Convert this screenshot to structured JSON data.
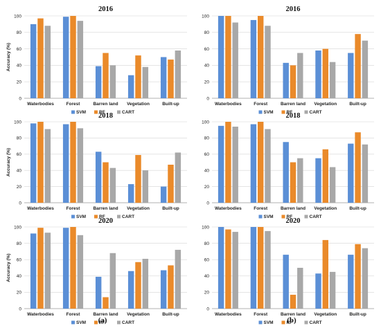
{
  "colors": {
    "SVM": "#5b8fd6",
    "RF": "#ea8a2a",
    "CART": "#a8a8a8"
  },
  "panel_labels": [
    "(a)",
    "(b)"
  ],
  "chart_data": [
    {
      "type": "bar",
      "panel": "a",
      "title": "2016",
      "ylabel": "Accuracy (%)",
      "ylim": [
        0,
        100
      ],
      "yticks": [
        "0",
        "20",
        "40",
        "60",
        "80",
        "100"
      ],
      "categories": [
        "Waterbodies",
        "Forest",
        "Barren land",
        "Vegetation",
        "Built-up"
      ],
      "series": [
        {
          "name": "SVM",
          "values": [
            90,
            99,
            39,
            28,
            50
          ]
        },
        {
          "name": "RF",
          "values": [
            97,
            100,
            55,
            52,
            47
          ]
        },
        {
          "name": "CART",
          "values": [
            88,
            94,
            40,
            38,
            58
          ]
        }
      ],
      "legend": "bottom",
      "grid": true
    },
    {
      "type": "bar",
      "panel": "b",
      "title": "2016",
      "ylabel": "",
      "ylim": [
        0,
        100
      ],
      "yticks": [
        "0",
        "20",
        "40",
        "60",
        "80",
        "100"
      ],
      "categories": [
        "Waterbodies",
        "Forest",
        "Barren land",
        "Vegetation",
        "Built-up"
      ],
      "series": [
        {
          "name": "SVM",
          "values": [
            100,
            95,
            43,
            58,
            55
          ]
        },
        {
          "name": "RF",
          "values": [
            100,
            100,
            40,
            60,
            78
          ]
        },
        {
          "name": "CART",
          "values": [
            92,
            88,
            55,
            44,
            70
          ]
        }
      ],
      "legend": "bottom",
      "grid": true
    },
    {
      "type": "bar",
      "panel": "a",
      "title": "2018",
      "ylabel": "Accuracy (%)",
      "ylim": [
        0,
        100
      ],
      "yticks": [
        "0",
        "20",
        "40",
        "60",
        "80",
        "100"
      ],
      "categories": [
        "Waterbodies",
        "Forest",
        "Barren land",
        "Vegetation",
        "Built-up"
      ],
      "series": [
        {
          "name": "SVM",
          "values": [
            98,
            97,
            63,
            23,
            20
          ]
        },
        {
          "name": "RF",
          "values": [
            100,
            100,
            50,
            59,
            47
          ]
        },
        {
          "name": "CART",
          "values": [
            91,
            92,
            43,
            40,
            62
          ]
        }
      ],
      "legend": "bottom",
      "grid": true
    },
    {
      "type": "bar",
      "panel": "b",
      "title": "2018",
      "ylabel": "",
      "ylim": [
        0,
        100
      ],
      "yticks": [
        "0",
        "20",
        "40",
        "60",
        "80",
        "100"
      ],
      "categories": [
        "Waterbodies",
        "Forest",
        "Barren land",
        "Vegetation",
        "Built-up"
      ],
      "series": [
        {
          "name": "SVM",
          "values": [
            95,
            97,
            75,
            55,
            73
          ]
        },
        {
          "name": "RF",
          "values": [
            100,
            100,
            50,
            66,
            87
          ]
        },
        {
          "name": "CART",
          "values": [
            94,
            91,
            55,
            44,
            72
          ]
        }
      ],
      "legend": "bottom",
      "grid": true
    },
    {
      "type": "bar",
      "panel": "a",
      "title": "2020",
      "ylabel": "Accuracy (%)",
      "ylim": [
        0,
        100
      ],
      "yticks": [
        "0",
        "20",
        "40",
        "60",
        "80",
        "100"
      ],
      "categories": [
        "Waterbodies",
        "Forest",
        "Barren land",
        "Vegetation",
        "Built-up"
      ],
      "series": [
        {
          "name": "SVM",
          "values": [
            92,
            99,
            39,
            46,
            47
          ]
        },
        {
          "name": "RF",
          "values": [
            99,
            100,
            14,
            57,
            53
          ]
        },
        {
          "name": "CART",
          "values": [
            93,
            90,
            68,
            61,
            72
          ]
        }
      ],
      "legend": "bottom",
      "grid": true
    },
    {
      "type": "bar",
      "panel": "b",
      "title": "2020",
      "ylabel": "",
      "ylim": [
        0,
        100
      ],
      "yticks": [
        "0",
        "20",
        "40",
        "60",
        "80",
        "100"
      ],
      "categories": [
        "Waterbodies",
        "Forest",
        "Barren land",
        "Vegetation",
        "Built-up"
      ],
      "series": [
        {
          "name": "SVM",
          "values": [
            100,
            100,
            66,
            43,
            66
          ]
        },
        {
          "name": "RF",
          "values": [
            97,
            100,
            17,
            84,
            79
          ]
        },
        {
          "name": "CART",
          "values": [
            94,
            95,
            50,
            45,
            74
          ]
        }
      ],
      "legend": "bottom",
      "grid": true
    }
  ]
}
